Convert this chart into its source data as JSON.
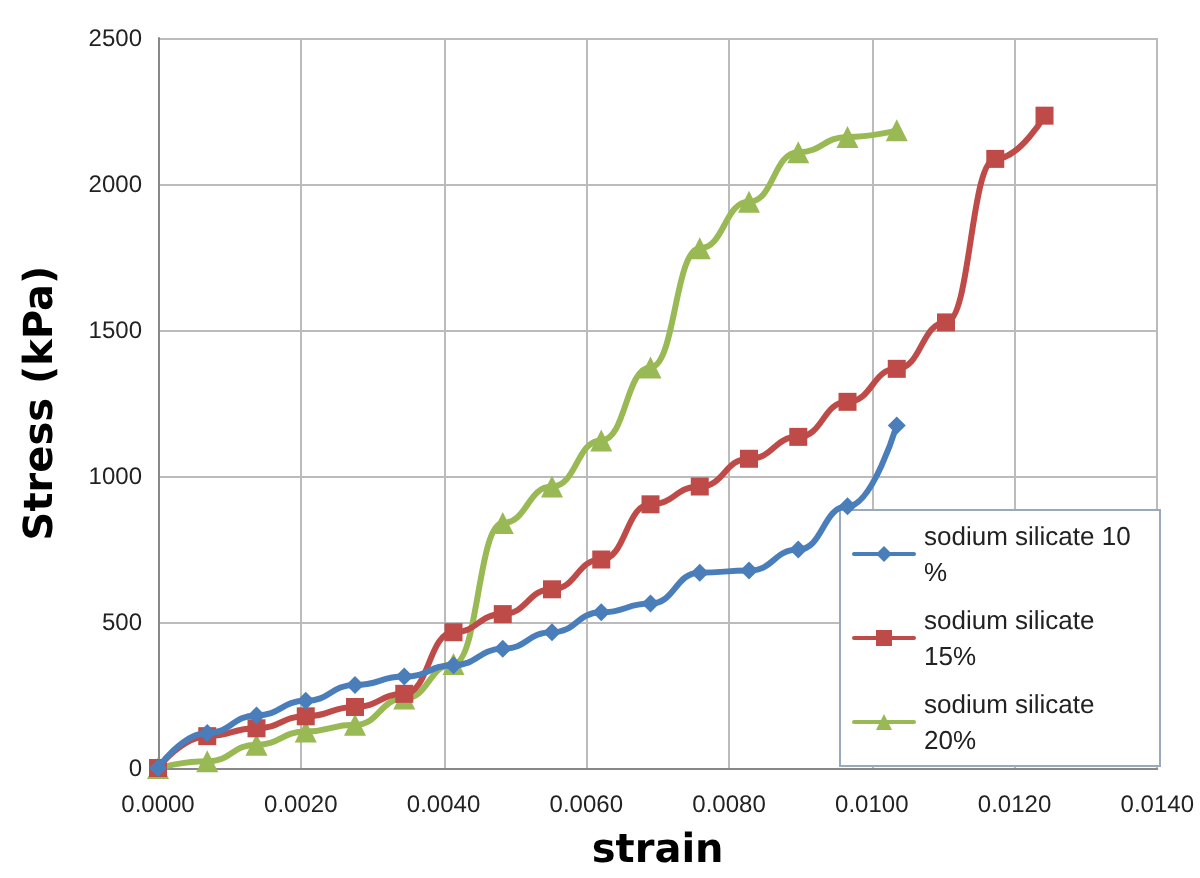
{
  "chart_data": {
    "type": "line",
    "xlabel": "strain",
    "ylabel": "Stress (kPa)",
    "xlim": [
      0,
      0.014
    ],
    "xticks": [
      {
        "value": 0,
        "label": "0.0000"
      },
      {
        "value": 0.002,
        "label": "0.0020"
      },
      {
        "value": 0.004,
        "label": "0.0040"
      },
      {
        "value": 0.006,
        "label": "0.0060"
      },
      {
        "value": 0.008,
        "label": "0.0080"
      },
      {
        "value": 0.01,
        "label": "0.0100"
      },
      {
        "value": 0.012,
        "label": "0.0120"
      },
      {
        "value": 0.014,
        "label": "0.0140"
      }
    ],
    "ylim": [
      0,
      2500
    ],
    "yticks": [
      0,
      500,
      1000,
      1500,
      2000,
      2500
    ],
    "grid": true,
    "legend": "bottom right",
    "series": [
      {
        "name": "sodium silicate 10 %",
        "color": "#4a7ebb",
        "marker": "diamond",
        "x": [
          0,
          0.00069,
          0.00138,
          0.00207,
          0.00276,
          0.00345,
          0.00414,
          0.00483,
          0.00552,
          0.00621,
          0.0069,
          0.00759,
          0.00828,
          0.00897,
          0.00966,
          0.01035
        ],
        "values": [
          0,
          120,
          180,
          230,
          284,
          313,
          352,
          408,
          465,
          533,
          563,
          669,
          676,
          748,
          896,
          1173
        ]
      },
      {
        "name": "sodium silicate 15%",
        "color": "#be4b48",
        "marker": "square",
        "x": [
          0,
          0.00069,
          0.00138,
          0.00207,
          0.00276,
          0.00345,
          0.00414,
          0.00483,
          0.00552,
          0.00621,
          0.0069,
          0.00759,
          0.00828,
          0.00897,
          0.00966,
          0.01035,
          0.01104,
          0.01173,
          0.01242
        ],
        "values": [
          0,
          109,
          136,
          177,
          209,
          254,
          465,
          527,
          612,
          714,
          903,
          964,
          1059,
          1134,
          1254,
          1367,
          1526,
          2086,
          2234
        ]
      },
      {
        "name": "sodium silicate 20%",
        "color": "#98b954",
        "marker": "triangle",
        "x": [
          0,
          0.00069,
          0.00138,
          0.00207,
          0.00276,
          0.00345,
          0.00414,
          0.00483,
          0.00552,
          0.00621,
          0.0069,
          0.00759,
          0.00828,
          0.00897,
          0.00966,
          0.01035
        ],
        "values": [
          0,
          23,
          80,
          125,
          148,
          238,
          356,
          839,
          964,
          1122,
          1372,
          1780,
          1939,
          2109,
          2161,
          2184
        ]
      }
    ]
  }
}
